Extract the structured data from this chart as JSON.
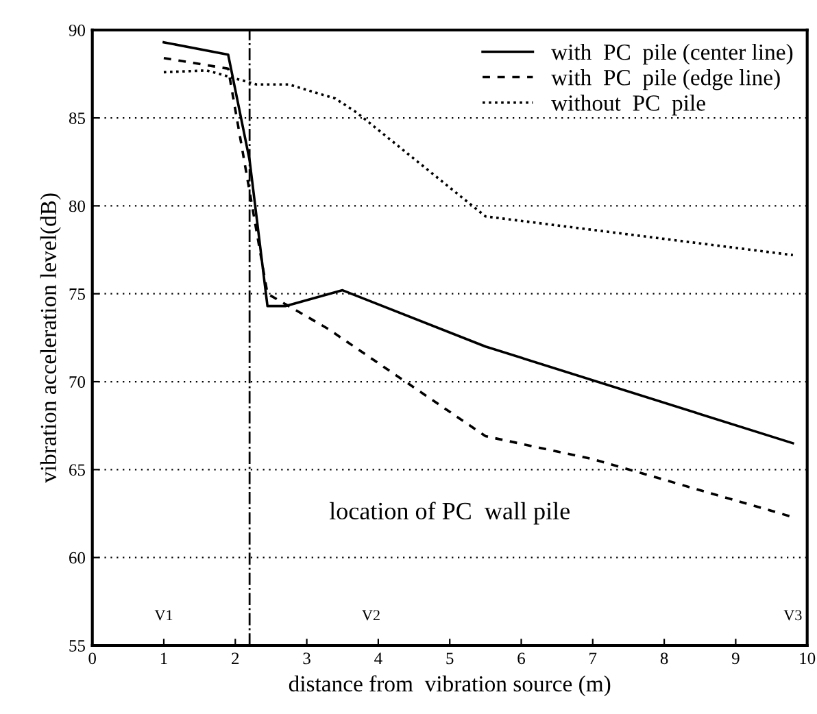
{
  "chart_data": {
    "type": "line",
    "xlabel": "distance from  vibration source (m)",
    "ylabel": "vibration acceleration level(dB)",
    "xlim": [
      0,
      10
    ],
    "xticks": [
      0,
      1,
      2,
      3,
      4,
      5,
      6,
      7,
      8,
      9,
      10
    ],
    "ylim": [
      55,
      90
    ],
    "yticks": [
      55,
      60,
      65,
      70,
      75,
      80,
      85,
      90
    ],
    "grid": "y",
    "legend": "top right",
    "series": [
      {
        "name": "with  PC  pile (center line)",
        "color": "#000000",
        "line_style": "solid",
        "x": [
          1,
          1.9,
          2.2,
          2.45,
          2.7,
          3.5,
          5.5,
          9.8
        ],
        "values": [
          89.3,
          88.6,
          82.6,
          74.3,
          74.3,
          75.2,
          72,
          66.5
        ]
      },
      {
        "name": "with  PC  pile (edge line)",
        "color": "#000000",
        "line_style": "dashed",
        "x": [
          1,
          1.9,
          2.45,
          3.3,
          4.2,
          5.5,
          7,
          9.8
        ],
        "values": [
          88.4,
          87.8,
          75,
          73,
          70.5,
          66.9,
          65.6,
          62.3
        ]
      },
      {
        "name": "without  PC  pile",
        "color": "#000000",
        "line_style": "dotted",
        "x": [
          1,
          1.6,
          2.3,
          2.75,
          3.4,
          3.7,
          5.5,
          9.8
        ],
        "values": [
          87.6,
          87.7,
          86.9,
          86.9,
          86.1,
          85.3,
          79.4,
          77.2
        ]
      }
    ],
    "ref_lines": [
      {
        "axis": "x",
        "value": 2.2,
        "color": "#000000",
        "line_style": "dashdot"
      }
    ],
    "annotations": [
      "location of PC  wall pile",
      "V1",
      "V2",
      "V3"
    ]
  }
}
